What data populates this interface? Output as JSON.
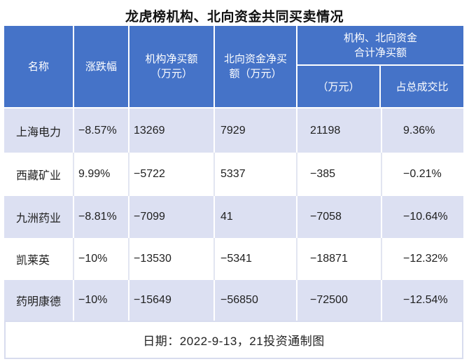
{
  "title": "龙虎榜机构、北向资金共同买卖情况",
  "colors": {
    "header_bg": "#4573C8",
    "stripe_row_bg": "#DCE0F2",
    "footer_border": "#D8DCEE",
    "header_text": "#FFFFFF",
    "body_text": "#1F1F1F"
  },
  "table": {
    "headers": {
      "name": "名称",
      "change": "涨跌幅",
      "inst": "机构净买额\n（万元）",
      "north": "北向资金净买\n额（万元）",
      "group": "机构、北向资金\n合计净买额",
      "sub_amount": "（万元）",
      "sub_ratio": "占总成交比"
    },
    "rows": [
      {
        "name": "上海电力",
        "change": "−8.57%",
        "inst": "13269",
        "north": "7929",
        "total": "21198",
        "ratio": "9.36%"
      },
      {
        "name": "西藏矿业",
        "change": "9.99%",
        "inst": "−5722",
        "north": "5337",
        "total": "−385",
        "ratio": "−0.21%"
      },
      {
        "name": "九洲药业",
        "change": "−8.81%",
        "inst": "−7099",
        "north": "41",
        "total": "−7058",
        "ratio": "−10.64%"
      },
      {
        "name": "凯莱英",
        "change": "−10%",
        "inst": "−13530",
        "north": "−5341",
        "total": "−18871",
        "ratio": "−12.32%"
      },
      {
        "name": "药明康德",
        "change": "−10%",
        "inst": "−15649",
        "north": "−56850",
        "total": "−72500",
        "ratio": "−12.54%"
      }
    ]
  },
  "footer": "日期：2022-9-13，21投资通制图",
  "chart_data": {
    "type": "table",
    "title": "龙虎榜机构、北向资金共同买卖情况",
    "columns": [
      "名称",
      "涨跌幅",
      "机构净买额（万元）",
      "北向资金净买额（万元）",
      "机构、北向资金合计净买额（万元）",
      "机构、北向资金合计净买额占总成交比"
    ],
    "rows": [
      [
        "上海电力",
        "-8.57%",
        13269,
        7929,
        21198,
        "9.36%"
      ],
      [
        "西藏矿业",
        "9.99%",
        -5722,
        5337,
        -385,
        "-0.21%"
      ],
      [
        "九洲药业",
        "-8.81%",
        -7099,
        41,
        -7058,
        "-10.64%"
      ],
      [
        "凯莱英",
        "-10%",
        -13530,
        -5341,
        -18871,
        "-12.32%"
      ],
      [
        "药明康德",
        "-10%",
        -15649,
        -56850,
        -72500,
        "-12.54%"
      ]
    ],
    "footnote": "日期：2022-9-13，21投资通制图",
    "layout": {
      "striped_rows": true,
      "stripe_color": "#DCE0F2",
      "header_color": "#4573C8"
    }
  }
}
